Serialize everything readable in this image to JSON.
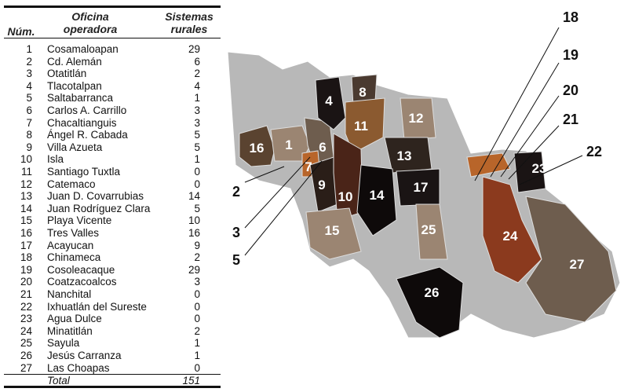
{
  "table": {
    "headers": {
      "num": "Núm.",
      "oficina_1": "Oficina",
      "oficina_2": "operadora",
      "sistemas_1": "Sistemas",
      "sistemas_2": "rurales"
    },
    "rows": [
      {
        "num": "1",
        "oficina": "Cosamaloapan",
        "sistemas": "29"
      },
      {
        "num": "2",
        "oficina": "Cd. Alemán",
        "sistemas": "6"
      },
      {
        "num": "3",
        "oficina": "Otatitlán",
        "sistemas": "2"
      },
      {
        "num": "4",
        "oficina": "Tlacotalpan",
        "sistemas": "4"
      },
      {
        "num": "5",
        "oficina": "Saltabarranca",
        "sistemas": "1"
      },
      {
        "num": "6",
        "oficina": "Carlos A. Carrillo",
        "sistemas": "3"
      },
      {
        "num": "7",
        "oficina": "Chacaltianguis",
        "sistemas": "3"
      },
      {
        "num": "8",
        "oficina": "Ángel R. Cabada",
        "sistemas": "5"
      },
      {
        "num": "9",
        "oficina": "Villa Azueta",
        "sistemas": "5"
      },
      {
        "num": "10",
        "oficina": "Isla",
        "sistemas": "1"
      },
      {
        "num": "11",
        "oficina": "Santiago Tuxtla",
        "sistemas": "0"
      },
      {
        "num": "12",
        "oficina": "Catemaco",
        "sistemas": "0"
      },
      {
        "num": "13",
        "oficina": "Juan D. Covarrubias",
        "sistemas": "14"
      },
      {
        "num": "14",
        "oficina": "Juan Rodríguez Clara",
        "sistemas": "5"
      },
      {
        "num": "15",
        "oficina": "Playa Vicente",
        "sistemas": "10"
      },
      {
        "num": "16",
        "oficina": "Tres Valles",
        "sistemas": "16"
      },
      {
        "num": "17",
        "oficina": "Acayucan",
        "sistemas": "9"
      },
      {
        "num": "18",
        "oficina": "Chinameca",
        "sistemas": "2"
      },
      {
        "num": "19",
        "oficina": "Cosoleacaque",
        "sistemas": "29"
      },
      {
        "num": "20",
        "oficina": "Coatzacoalcos",
        "sistemas": "3"
      },
      {
        "num": "21",
        "oficina": "Nanchital",
        "sistemas": "0"
      },
      {
        "num": "22",
        "oficina": "Ixhuatlán del Sureste",
        "sistemas": "0"
      },
      {
        "num": "23",
        "oficina": "Agua Dulce",
        "sistemas": "0"
      },
      {
        "num": "24",
        "oficina": "Minatitlán",
        "sistemas": "2"
      },
      {
        "num": "25",
        "oficina": "Sayula",
        "sistemas": "1"
      },
      {
        "num": "26",
        "oficina": "Jesús Carranza",
        "sistemas": "1"
      },
      {
        "num": "27",
        "oficina": "Las Choapas",
        "sistemas": "0"
      }
    ],
    "total": {
      "label": "Total",
      "sistemas": "151"
    }
  },
  "map": {
    "region_labels": [
      "1",
      "2",
      "3",
      "4",
      "5",
      "6",
      "7",
      "8",
      "9",
      "10",
      "11",
      "12",
      "13",
      "14",
      "15",
      "16",
      "17",
      "18",
      "19",
      "20",
      "21",
      "22",
      "23",
      "24",
      "25",
      "26",
      "27"
    ],
    "colors": {
      "gray": "#b8b8b8",
      "dark": "#1a1414",
      "brown": "#5a4330",
      "rust": "#8b3a1e",
      "orange": "#b8652a",
      "tan": "#9b8572",
      "mid": "#6e5d4e"
    }
  }
}
